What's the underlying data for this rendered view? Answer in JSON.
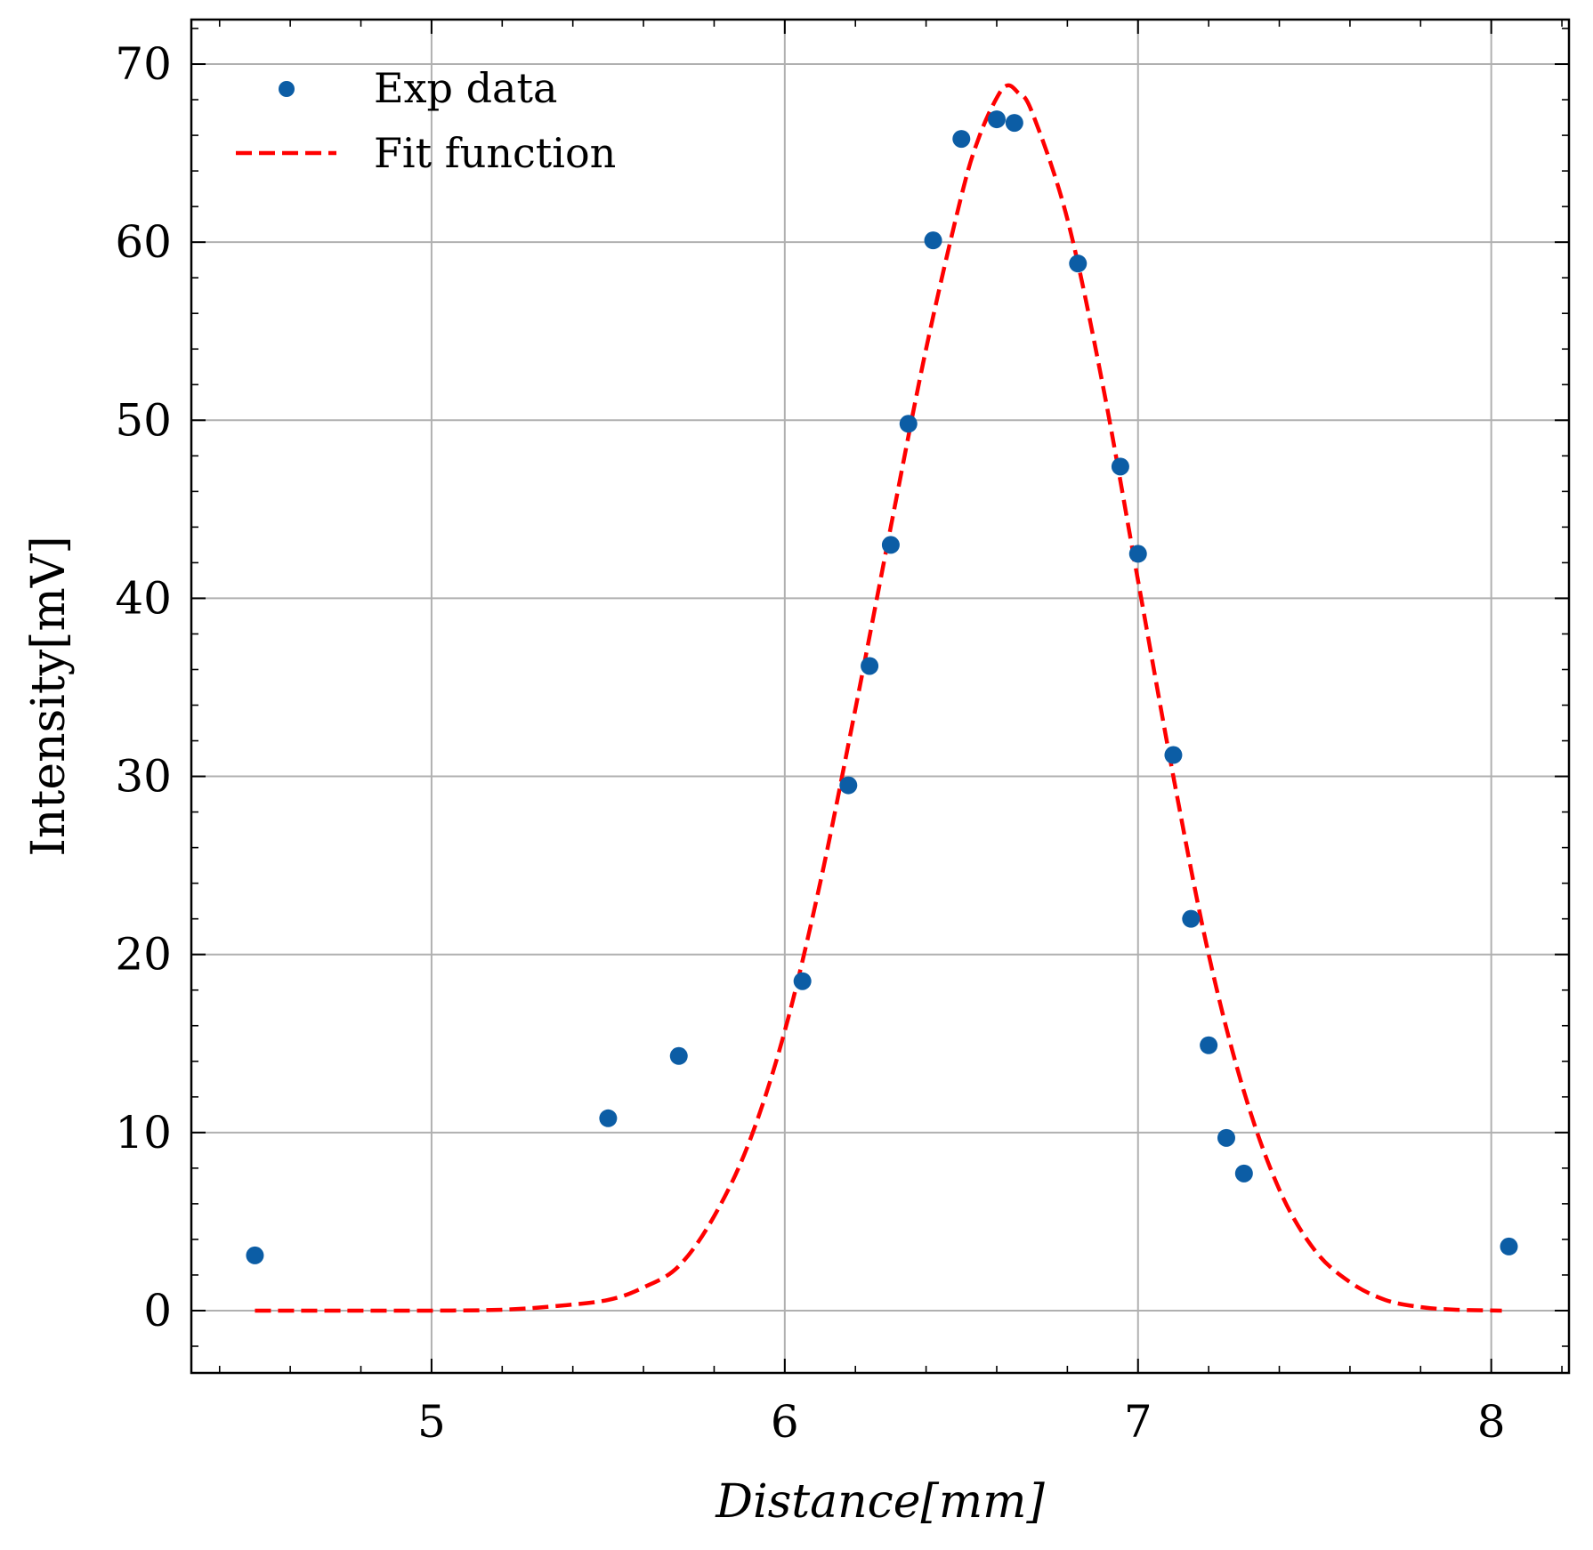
{
  "chart_data": {
    "type": "scatter",
    "xlabel": "Distance[mm]",
    "ylabel": "Intensity[mV]",
    "xlim": [
      4.32,
      8.22
    ],
    "ylim": [
      -3.5,
      72.5
    ],
    "xticks": [
      5,
      6,
      7,
      8
    ],
    "yticks": [
      0,
      10,
      20,
      30,
      40,
      50,
      60,
      70
    ],
    "grid": true,
    "legend_position": "top-left",
    "colors": {
      "points": "#0C5DA5",
      "fit": "#FF0000",
      "grid": "#b0b0b0"
    },
    "series": [
      {
        "name": "Exp data",
        "kind": "scatter",
        "x": [
          4.5,
          5.5,
          5.7,
          6.05,
          6.18,
          6.24,
          6.3,
          6.35,
          6.42,
          6.5,
          6.6,
          6.65,
          6.83,
          6.95,
          7.0,
          7.1,
          7.15,
          7.2,
          7.25,
          7.3,
          8.05
        ],
        "y": [
          3.1,
          10.8,
          14.3,
          18.5,
          29.5,
          36.2,
          43.0,
          49.8,
          60.1,
          65.8,
          66.9,
          66.7,
          58.8,
          47.4,
          42.5,
          31.2,
          22.0,
          14.9,
          9.7,
          7.7,
          3.6
        ]
      },
      {
        "name": "Fit function",
        "kind": "line",
        "style": "dashed",
        "x": [
          4.5,
          4.75,
          5.0,
          5.2,
          5.35,
          5.5,
          5.6,
          5.7,
          5.8,
          5.9,
          6.0,
          6.1,
          6.2,
          6.3,
          6.4,
          6.5,
          6.55,
          6.6,
          6.63,
          6.66,
          6.7,
          6.8,
          6.9,
          7.0,
          7.1,
          7.2,
          7.3,
          7.4,
          7.5,
          7.6,
          7.7,
          7.8,
          7.9,
          8.03
        ],
        "y": [
          0.0,
          0.0,
          0.0,
          0.05,
          0.25,
          0.6,
          1.3,
          2.5,
          5.3,
          9.5,
          15.7,
          24.0,
          33.8,
          44.0,
          54.0,
          62.6,
          65.9,
          68.1,
          68.8,
          68.4,
          67.3,
          61.3,
          52.0,
          41.0,
          30.0,
          20.0,
          12.3,
          6.8,
          3.4,
          1.6,
          0.6,
          0.2,
          0.05,
          0.0
        ]
      }
    ]
  }
}
